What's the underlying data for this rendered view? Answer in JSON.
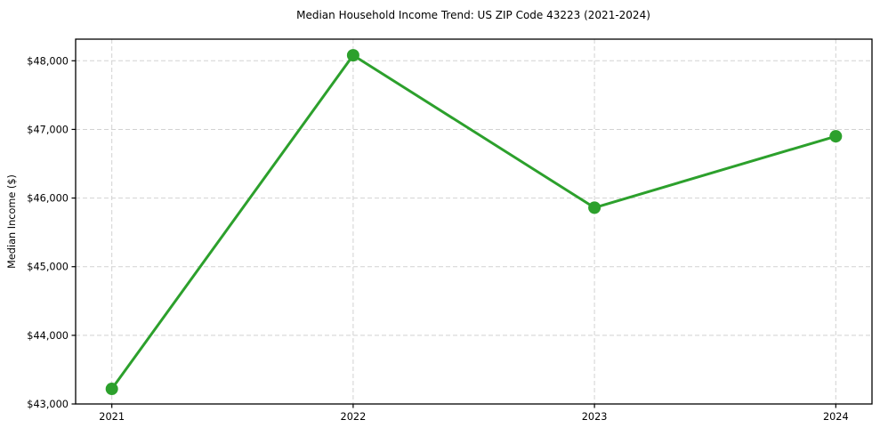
{
  "chart_data": {
    "type": "line",
    "title": "Median Household Income Trend: US ZIP Code 43223 (2021-2024)",
    "xlabel": "",
    "ylabel": "Median Income ($)",
    "x": [
      2021,
      2022,
      2023,
      2024
    ],
    "x_tick_labels": [
      "2021",
      "2022",
      "2023",
      "2024"
    ],
    "values": [
      43220,
      48080,
      45860,
      46900
    ],
    "yticks": [
      43000,
      44000,
      45000,
      46000,
      47000,
      48000
    ],
    "ytick_labels": [
      "$43,000",
      "$44,000",
      "$45,000",
      "$46,000",
      "$47,000",
      "$48,000"
    ],
    "ylim": [
      43000,
      48315
    ],
    "xlim": [
      2020.85,
      2024.15
    ],
    "grid": true,
    "grid_style": "dashed",
    "legend_position": "none",
    "line_color": "#2ca02c",
    "marker": "circle",
    "marker_color": "#2ca02c",
    "grid_color": "#d2d2d2",
    "spine_color": "#000000",
    "text_color": "#000000"
  }
}
